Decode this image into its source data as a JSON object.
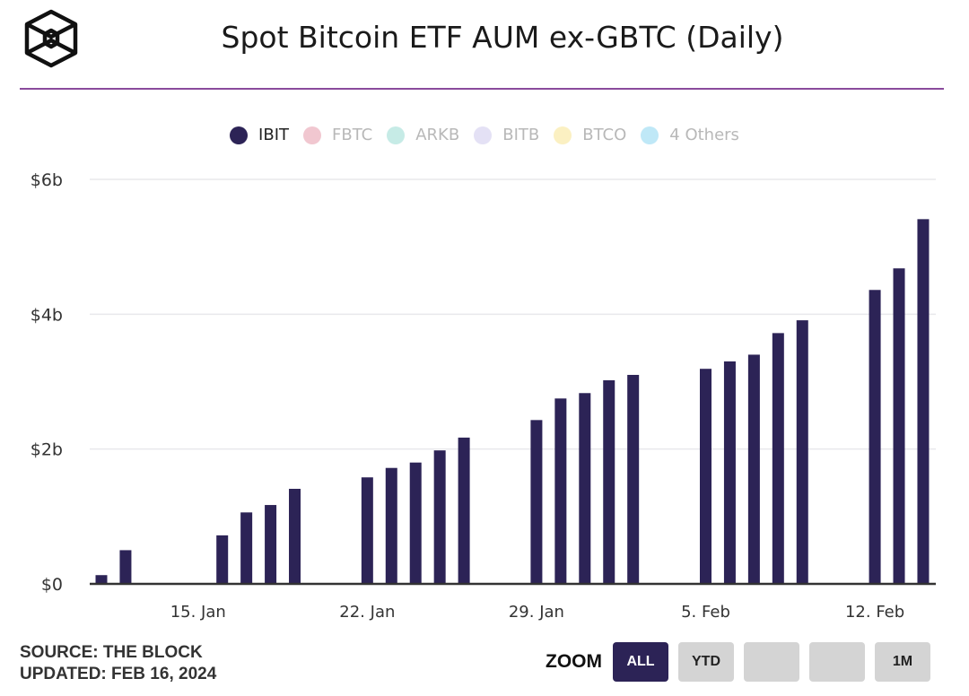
{
  "header": {
    "title": "Spot Bitcoin ETF AUM ex-GBTC (Daily)",
    "logo": "the-block-cube-logo"
  },
  "colors": {
    "accent_rule": "#8a4b9c",
    "bar": "#2c2356",
    "gridline": "#e8e8ec",
    "axis": "#333333"
  },
  "legend": [
    {
      "label": "IBIT",
      "color": "#2c2356",
      "active": true
    },
    {
      "label": "FBTC",
      "color": "#f1c7d0",
      "active": false
    },
    {
      "label": "ARKB",
      "color": "#c6ebe6",
      "active": false
    },
    {
      "label": "BITB",
      "color": "#e4e1f5",
      "active": false
    },
    {
      "label": "BTCO",
      "color": "#fbf0c2",
      "active": false
    },
    {
      "label": "4 Others",
      "color": "#bfe8f7",
      "active": false
    }
  ],
  "chart_data": {
    "type": "bar",
    "title": "Spot Bitcoin ETF AUM ex-GBTC (Daily)",
    "xlabel": "",
    "ylabel": "",
    "ylim": [
      0,
      6
    ],
    "grid": true,
    "legend_position": "top",
    "yticks": [
      {
        "value": 0,
        "label": "$0"
      },
      {
        "value": 2,
        "label": "$2b"
      },
      {
        "value": 4,
        "label": "$4b"
      },
      {
        "value": 6,
        "label": "$6b"
      }
    ],
    "xticks": [
      {
        "day": 15,
        "label": "15. Jan"
      },
      {
        "day": 22,
        "label": "22. Jan"
      },
      {
        "day": 29,
        "label": "29. Jan"
      },
      {
        "day": 36,
        "label": "5. Feb"
      },
      {
        "day": 43,
        "label": "12. Feb"
      }
    ],
    "x_day_range": [
      10,
      45
    ],
    "series": [
      {
        "name": "IBIT",
        "unit": "USD billions",
        "points": [
          {
            "date": "2024-01-11",
            "day": 11,
            "value": 0.13
          },
          {
            "date": "2024-01-12",
            "day": 12,
            "value": 0.5
          },
          {
            "date": "2024-01-16",
            "day": 16,
            "value": 0.72
          },
          {
            "date": "2024-01-17",
            "day": 17,
            "value": 1.06
          },
          {
            "date": "2024-01-18",
            "day": 18,
            "value": 1.17
          },
          {
            "date": "2024-01-19",
            "day": 19,
            "value": 1.41
          },
          {
            "date": "2024-01-22",
            "day": 22,
            "value": 1.58
          },
          {
            "date": "2024-01-23",
            "day": 23,
            "value": 1.72
          },
          {
            "date": "2024-01-24",
            "day": 24,
            "value": 1.8
          },
          {
            "date": "2024-01-25",
            "day": 25,
            "value": 1.98
          },
          {
            "date": "2024-01-26",
            "day": 26,
            "value": 2.17
          },
          {
            "date": "2024-01-29",
            "day": 29,
            "value": 2.43
          },
          {
            "date": "2024-01-30",
            "day": 30,
            "value": 2.75
          },
          {
            "date": "2024-01-31",
            "day": 31,
            "value": 2.83
          },
          {
            "date": "2024-02-01",
            "day": 32,
            "value": 3.02
          },
          {
            "date": "2024-02-02",
            "day": 33,
            "value": 3.1
          },
          {
            "date": "2024-02-05",
            "day": 36,
            "value": 3.19
          },
          {
            "date": "2024-02-06",
            "day": 37,
            "value": 3.3
          },
          {
            "date": "2024-02-07",
            "day": 38,
            "value": 3.4
          },
          {
            "date": "2024-02-08",
            "day": 39,
            "value": 3.72
          },
          {
            "date": "2024-02-09",
            "day": 40,
            "value": 3.91
          },
          {
            "date": "2024-02-12",
            "day": 43,
            "value": 4.36
          },
          {
            "date": "2024-02-13",
            "day": 44,
            "value": 4.68
          },
          {
            "date": "2024-02-14",
            "day": 45,
            "value": 5.41
          }
        ]
      }
    ]
  },
  "footer": {
    "source": "SOURCE: THE BLOCK",
    "updated": "UPDATED: FEB 16, 2024",
    "zoom_label": "ZOOM",
    "zoom_buttons": [
      {
        "label": "ALL",
        "active": true
      },
      {
        "label": "YTD",
        "active": false
      },
      {
        "label": "",
        "active": false
      },
      {
        "label": "",
        "active": false
      },
      {
        "label": "1M",
        "active": false
      }
    ]
  }
}
